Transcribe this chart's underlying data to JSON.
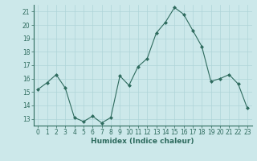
{
  "x": [
    0,
    1,
    2,
    3,
    4,
    5,
    6,
    7,
    8,
    9,
    10,
    11,
    12,
    13,
    14,
    15,
    16,
    17,
    18,
    19,
    20,
    21,
    22,
    23
  ],
  "y": [
    15.2,
    15.7,
    16.3,
    15.3,
    13.1,
    12.8,
    13.2,
    12.7,
    13.1,
    16.2,
    15.5,
    16.9,
    17.5,
    19.4,
    20.2,
    21.3,
    20.8,
    19.6,
    18.4,
    15.8,
    16.0,
    16.3,
    15.6,
    13.8
  ],
  "xlabel": "Humidex (Indice chaleur)",
  "xlim": [
    -0.5,
    23.5
  ],
  "ylim": [
    12.5,
    21.5
  ],
  "yticks": [
    13,
    14,
    15,
    16,
    17,
    18,
    19,
    20,
    21
  ],
  "xticks": [
    0,
    1,
    2,
    3,
    4,
    5,
    6,
    7,
    8,
    9,
    10,
    11,
    12,
    13,
    14,
    15,
    16,
    17,
    18,
    19,
    20,
    21,
    22,
    23
  ],
  "line_color": "#2e6b5e",
  "bg_color": "#cce8ea",
  "grid_color": "#afd4d8",
  "marker": "D",
  "markersize": 2,
  "linewidth": 0.8,
  "tick_fontsize": 5.5,
  "xlabel_fontsize": 6.5
}
